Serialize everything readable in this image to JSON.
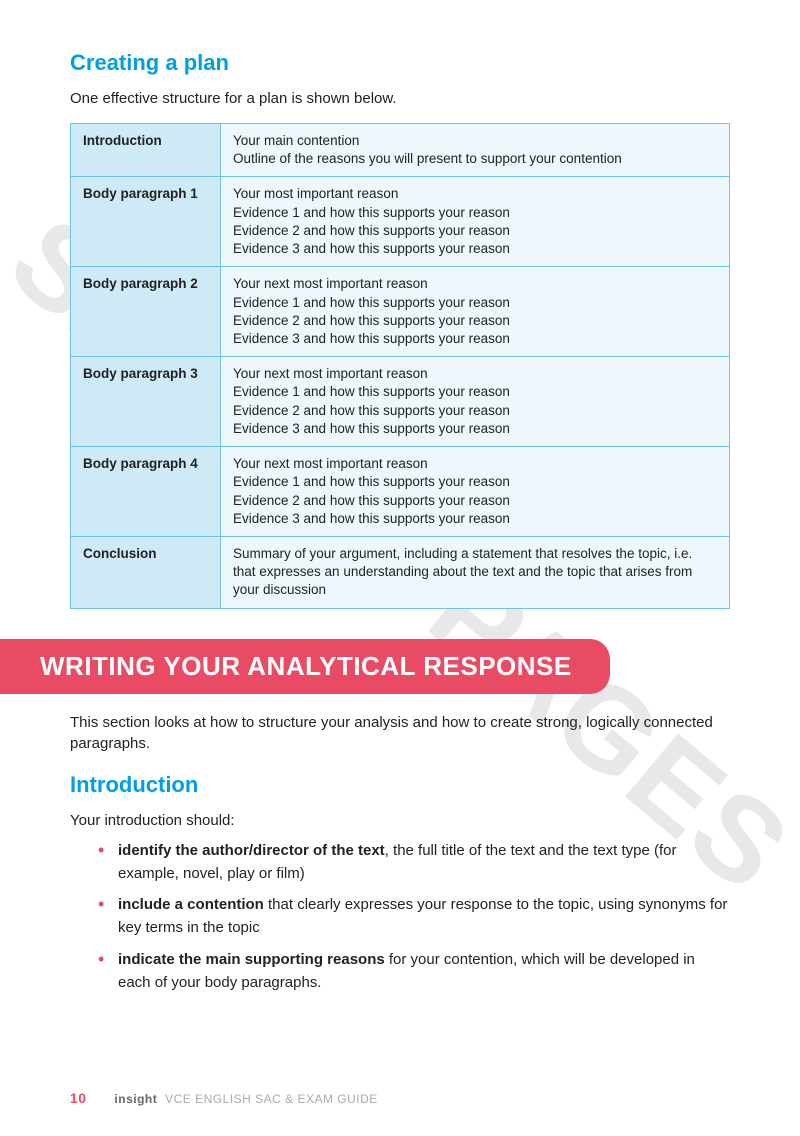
{
  "watermark": "SAMPLE PAGES",
  "heading1": "Creating a plan",
  "lead1": "One effective structure for a plan is shown below.",
  "table": {
    "rows": [
      {
        "label": "Introduction",
        "lines": [
          "Your main contention",
          "Outline of the reasons you will present to support your contention"
        ]
      },
      {
        "label": "Body paragraph 1",
        "lines": [
          "Your most important reason",
          "Evidence 1 and how this supports your reason",
          "Evidence 2 and how this supports your reason",
          "Evidence 3 and how this supports your reason"
        ]
      },
      {
        "label": "Body paragraph 2",
        "lines": [
          "Your next most important reason",
          "Evidence 1 and how this supports your reason",
          "Evidence 2 and how this supports your reason",
          "Evidence 3 and how this supports your reason"
        ]
      },
      {
        "label": "Body paragraph 3",
        "lines": [
          "Your next most important reason",
          "Evidence 1 and how this supports your reason",
          "Evidence 2 and how this supports your reason",
          "Evidence 3 and how this supports your reason"
        ]
      },
      {
        "label": "Body paragraph 4",
        "lines": [
          "Your next most important reason",
          "Evidence 1 and how this supports your reason",
          "Evidence 2 and how this supports your reason",
          "Evidence 3 and how this supports your reason"
        ]
      },
      {
        "label": "Conclusion",
        "lines": [
          "Summary of your argument, including a statement that resolves the topic, i.e. that expresses an understanding about the text and the topic that arises from your discussion"
        ]
      }
    ]
  },
  "banner": "WRITING YOUR ANALYTICAL RESPONSE",
  "lead2": "This section looks at how to structure your analysis and how to create strong, logically connected paragraphs.",
  "heading2": "Introduction",
  "lead3": "Your introduction should:",
  "bullets": [
    {
      "bold": "identify the author/director of the text",
      "rest": ", the full title of the text and the text type (for example, novel, play or film)"
    },
    {
      "bold": "include a contention",
      "rest": " that clearly expresses your response to the topic, using synonyms for key terms in the topic"
    },
    {
      "bold": "indicate the main supporting reasons",
      "rest": " for your contention, which will be developed in each of your body paragraphs."
    }
  ],
  "footer": {
    "pageno": "10",
    "brand": "insight",
    "title": "VCE ENGLISH SAC & EXAM GUIDE"
  },
  "colors": {
    "heading_blue": "#009fe3",
    "banner_red": "#e94b64",
    "table_border": "#6ec5e9",
    "table_label_bg": "#cdeaf6",
    "table_body_bg": "#eef8fc",
    "watermark": "#e8e8e8"
  }
}
